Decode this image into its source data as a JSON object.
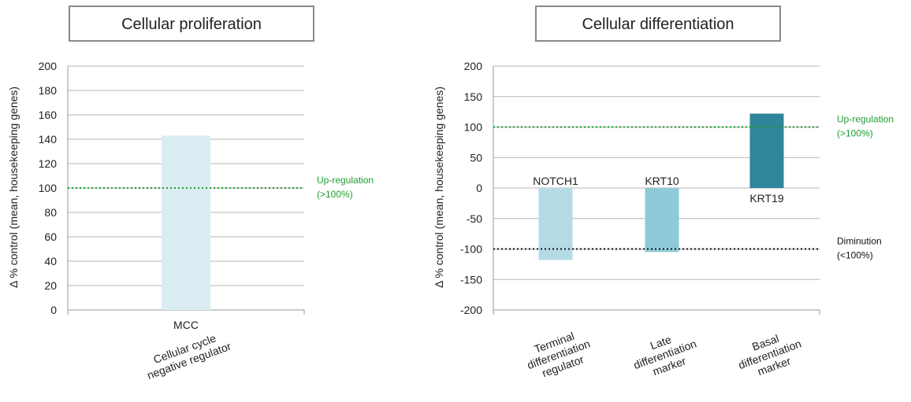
{
  "chart_data": [
    {
      "type": "bar",
      "title": "Cellular proliferation",
      "ylabel": "Δ % control (mean, housekeeping genes)",
      "ylim": [
        0,
        200
      ],
      "yticks": [
        0,
        20,
        40,
        60,
        80,
        100,
        120,
        140,
        160,
        180,
        200
      ],
      "grid": true,
      "categories": [
        "Cellular cycle\nnegative regulator"
      ],
      "series": [
        {
          "labels": [
            "MCC"
          ],
          "values": [
            143
          ],
          "colors": [
            "#daedf3"
          ]
        }
      ],
      "reference_lines": [
        {
          "value": 100,
          "label": "Up-regulation\n(>100%)",
          "color": "#1e9e2e"
        }
      ]
    },
    {
      "type": "bar",
      "title": "Cellular differentiation",
      "ylabel": "Δ % control (mean, housekeeping genes)",
      "ylim": [
        -200,
        200
      ],
      "yticks": [
        -200,
        -150,
        -100,
        -50,
        0,
        50,
        100,
        150,
        200
      ],
      "grid": true,
      "categories": [
        "Terminal\ndifferentiation\nregulator",
        "Late\ndifferentiation\nmarker",
        "Basal\ndifferentiation\nmarker"
      ],
      "series": [
        {
          "labels": [
            "NOTCH1",
            "KRT10",
            "KRT19"
          ],
          "values": [
            -118,
            -105,
            122
          ],
          "colors": [
            "#b4dbe6",
            "#8fcad9",
            "#2f8599"
          ]
        }
      ],
      "reference_lines": [
        {
          "value": 100,
          "label": "Up-regulation\n(>100%)",
          "color": "#1e9e2e"
        },
        {
          "value": -100,
          "label": "Diminution\n(<100%)",
          "color": "#111111"
        }
      ]
    }
  ]
}
